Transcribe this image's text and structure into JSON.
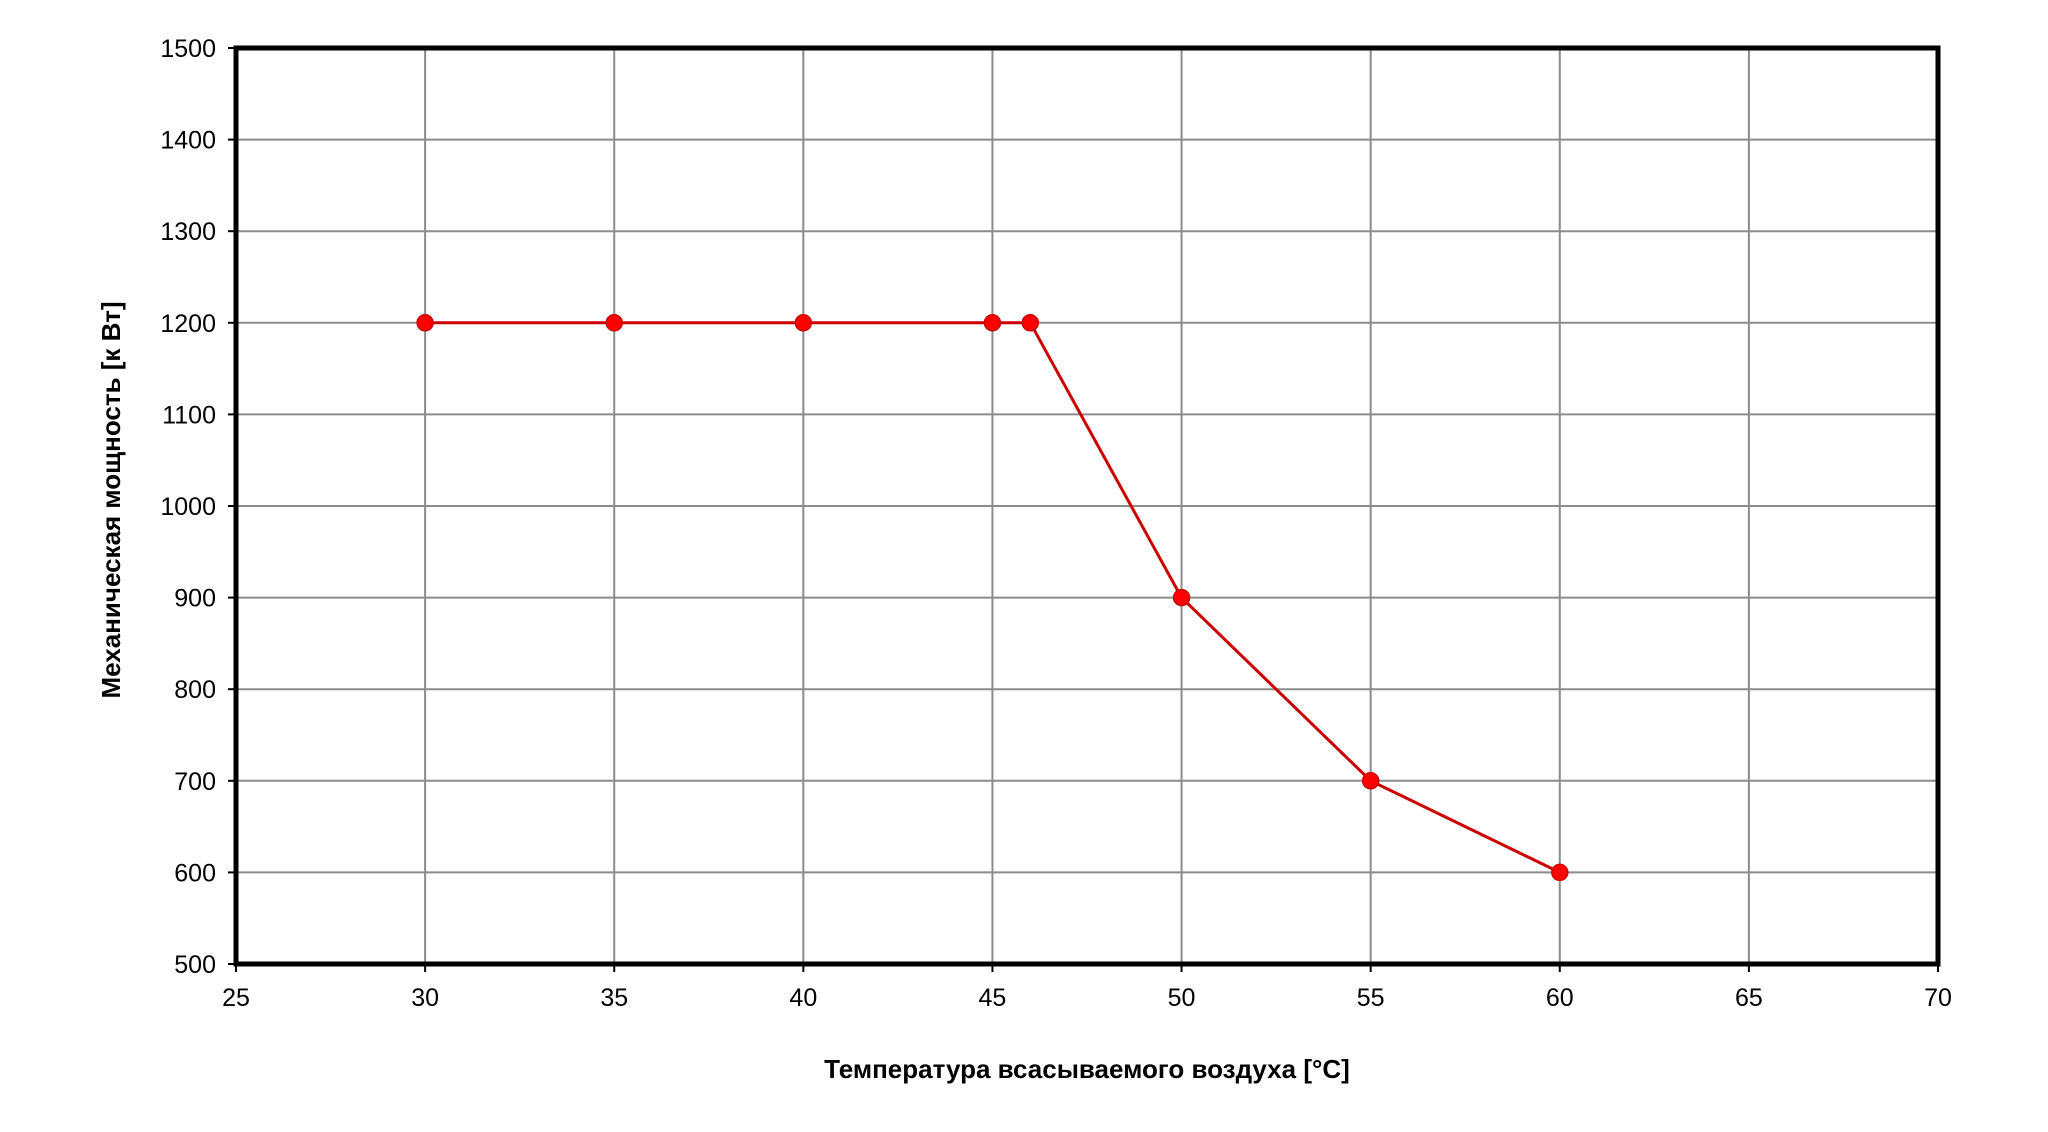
{
  "chart_data": {
    "type": "line",
    "title": "",
    "xlabel": "Температура всасываемого воздуха [°C]",
    "ylabel": "Механическая мощность [к Вт]",
    "xlim": [
      25,
      70
    ],
    "ylim": [
      500,
      1500
    ],
    "x_ticks": [
      "25",
      "30",
      "35",
      "40",
      "45",
      "50",
      "55",
      "60",
      "65",
      "70"
    ],
    "y_ticks": [
      "500",
      "600",
      "700",
      "800",
      "900",
      "1000",
      "1100",
      "1200",
      "1300",
      "1400",
      "1500"
    ],
    "grid": true,
    "legend": "none",
    "series": [
      {
        "color": "#cc0000",
        "marker_color": "#ff0000",
        "points": [
          {
            "x": 30,
            "y": 1200
          },
          {
            "x": 35,
            "y": 1200
          },
          {
            "x": 40,
            "y": 1200
          },
          {
            "x": 45,
            "y": 1200
          },
          {
            "x": 46,
            "y": 1200
          },
          {
            "x": 50,
            "y": 900
          },
          {
            "x": 55,
            "y": 700
          },
          {
            "x": 60,
            "y": 600
          }
        ]
      }
    ]
  }
}
